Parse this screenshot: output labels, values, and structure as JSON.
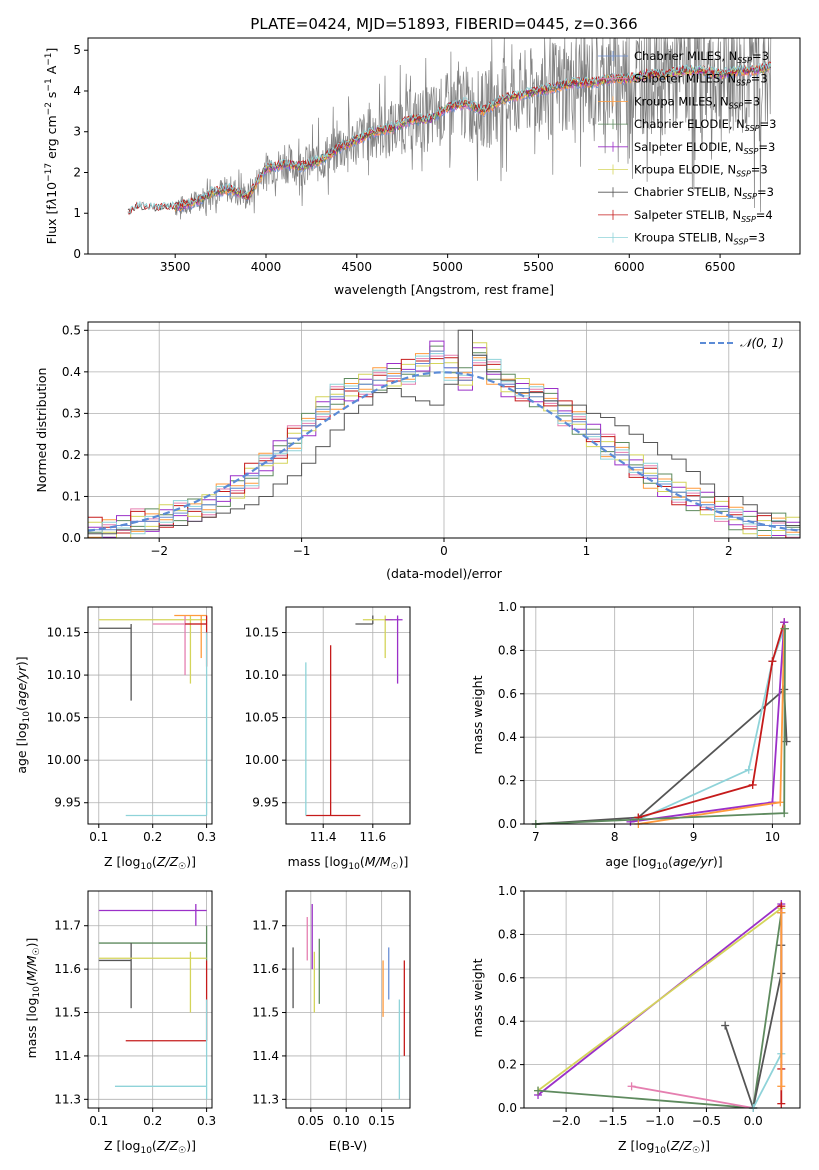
{
  "chart_data": [
    {
      "type": "line",
      "title": "PLATE=0424, MJD=51893, FIBERID=0445, z=0.366",
      "xlabel": "wavelength [Angstrom, rest frame]",
      "ylabel": "Flux [f_λ 10^-17 erg cm^-2 s^-1 A^-1]",
      "xlim": [
        3020,
        6940
      ],
      "ylim": [
        0,
        5.3
      ],
      "xticks": [
        3500,
        4000,
        4500,
        5000,
        5500,
        6000,
        6500
      ],
      "yticks": [
        0,
        1,
        2,
        3,
        4,
        5
      ],
      "grid": false,
      "legend_position": "right",
      "legend": [
        "Chabrier MILES, N_SSP=3",
        "Salpeter MILES, N_SSP=3",
        "Kroupa MILES, N_SSP=3",
        "Chabrier ELODIE, N_SSP=3",
        "Salpeter ELODIE, N_SSP=3",
        "Kroupa ELODIE, N_SSP=3",
        "Chabrier STELIB, N_SSP=3",
        "Salpeter STELIB, N_SSP=4",
        "Kroupa STELIB, N_SSP=3"
      ],
      "data_series": {
        "name": "data",
        "color": "#808080",
        "x": [
          3500,
          3700,
          3900,
          4000,
          4200,
          4400,
          4600,
          4800,
          5000,
          5200,
          5400,
          5600,
          5800,
          6000,
          6200,
          6400,
          6780
        ],
        "y": [
          0.8,
          1.7,
          1.9,
          2.1,
          2.3,
          2.6,
          3.0,
          3.3,
          3.6,
          3.8,
          4.0,
          4.2,
          4.4,
          4.5,
          4.5,
          4.6,
          4.5
        ]
      },
      "model_continuum": {
        "x": [
          3240,
          3300,
          3400,
          3500,
          3600,
          3700,
          3800,
          3900,
          4000,
          4100,
          4200,
          4300,
          4400,
          4500,
          4600,
          4700,
          4800,
          4900,
          5000,
          5100,
          5200,
          5300,
          5400,
          5500,
          5600,
          5700,
          5800,
          5900,
          6000,
          6100,
          6200,
          6300,
          6400,
          6500,
          6600,
          6700,
          6780
        ],
        "y": [
          1.0,
          1.15,
          1.1,
          1.15,
          1.25,
          1.5,
          1.6,
          1.4,
          2.1,
          2.2,
          2.15,
          2.3,
          2.6,
          2.8,
          3.0,
          3.1,
          3.3,
          3.3,
          3.6,
          3.7,
          3.5,
          3.8,
          3.9,
          4.0,
          4.1,
          4.2,
          4.2,
          4.3,
          4.3,
          4.4,
          4.4,
          4.5,
          4.5,
          4.4,
          4.5,
          4.5,
          4.6
        ]
      }
    },
    {
      "type": "line",
      "xlabel": "(data-model)/error",
      "ylabel": "Normed distribution",
      "xlim": [
        -2.5,
        2.5
      ],
      "ylim": [
        0,
        0.52
      ],
      "xticks": [
        -2,
        -1,
        0,
        1,
        2
      ],
      "yticks": [
        0.0,
        0.1,
        0.2,
        0.3,
        0.4,
        0.5
      ],
      "grid": true,
      "legend": [
        "𝒩(0, 1)"
      ],
      "legend_position": "top-right",
      "series": [
        {
          "name": "Chabrier MILES",
          "color": "#6a8fd6",
          "bin_edges": [
            -2.5,
            -2.4,
            -2.3,
            -2.2,
            -2.1,
            -2.0,
            -1.9,
            -1.8,
            -1.7,
            -1.6,
            -1.5,
            -1.4,
            -1.3,
            -1.2,
            -1.1,
            -1.0,
            -0.9,
            -0.8,
            -0.7,
            -0.6,
            -0.5,
            -0.4,
            -0.3,
            -0.2,
            -0.1,
            0.0,
            0.1,
            0.2,
            0.3,
            0.4,
            0.5,
            0.6,
            0.7,
            0.8,
            0.9,
            1.0,
            1.1,
            1.2,
            1.3,
            1.4,
            1.5,
            1.6,
            1.7,
            1.8,
            1.9,
            2.0,
            2.1,
            2.2,
            2.3,
            2.4,
            2.5
          ],
          "values": [
            0.02,
            0.02,
            0.03,
            0.04,
            0.04,
            0.05,
            0.06,
            0.07,
            0.08,
            0.1,
            0.12,
            0.15,
            0.18,
            0.21,
            0.24,
            0.27,
            0.31,
            0.34,
            0.36,
            0.37,
            0.38,
            0.39,
            0.4,
            0.42,
            0.45,
            0.41,
            0.38,
            0.44,
            0.4,
            0.37,
            0.36,
            0.34,
            0.33,
            0.3,
            0.28,
            0.25,
            0.22,
            0.2,
            0.17,
            0.15,
            0.13,
            0.11,
            0.09,
            0.08,
            0.07,
            0.05,
            0.04,
            0.03,
            0.03,
            0.02
          ]
        },
        {
          "name": "Chabrier STELIB",
          "color": "#555555",
          "bin_edges": [
            -2.5,
            -2.4,
            -2.3,
            -2.2,
            -2.1,
            -2.0,
            -1.9,
            -1.8,
            -1.7,
            -1.6,
            -1.5,
            -1.4,
            -1.3,
            -1.2,
            -1.1,
            -1.0,
            -0.9,
            -0.8,
            -0.7,
            -0.6,
            -0.5,
            -0.4,
            -0.3,
            -0.2,
            -0.1,
            0.0,
            0.1,
            0.2,
            0.3,
            0.4,
            0.5,
            0.6,
            0.7,
            0.8,
            0.9,
            1.0,
            1.1,
            1.2,
            1.3,
            1.4,
            1.5,
            1.6,
            1.7,
            1.8,
            1.9,
            2.0,
            2.1,
            2.2,
            2.3,
            2.4,
            2.5
          ],
          "values": [
            0.01,
            0.01,
            0.02,
            0.02,
            0.02,
            0.03,
            0.03,
            0.04,
            0.05,
            0.06,
            0.07,
            0.08,
            0.1,
            0.13,
            0.15,
            0.18,
            0.22,
            0.26,
            0.3,
            0.32,
            0.35,
            0.36,
            0.34,
            0.33,
            0.32,
            0.37,
            0.5,
            0.44,
            0.4,
            0.38,
            0.35,
            0.35,
            0.33,
            0.32,
            0.32,
            0.3,
            0.29,
            0.27,
            0.25,
            0.23,
            0.2,
            0.19,
            0.16,
            0.13,
            0.1,
            0.1,
            0.08,
            0.06,
            0.04,
            0.03
          ]
        },
        {
          "name": "Normal N(0,1)",
          "color": "#5b8bd6",
          "dashed": true,
          "formula": "exp(-x^2/2)/sqrt(2pi)"
        }
      ]
    },
    {
      "type": "scatter",
      "xlabel": "Z [log10(Z/Z☉)]",
      "ylabel": "age  [log10(age/yr)]",
      "xlim": [
        0.08,
        0.31
      ],
      "ylim": [
        9.925,
        10.18
      ],
      "xticks": [
        0.1,
        0.2,
        0.3
      ],
      "yticks": [
        9.95,
        10.0,
        10.05,
        10.1,
        10.15
      ],
      "grid": true,
      "points": [
        {
          "x": 0.16,
          "y": 10.155,
          "xerr": [
            0.1,
            0.16
          ],
          "yerr": [
            10.07,
            10.16
          ],
          "color": "#555555"
        },
        {
          "x": 0.27,
          "y": 10.165,
          "xerr": [
            0.1,
            0.3
          ],
          "yerr": [
            10.09,
            10.17
          ],
          "color": "#d4d45a"
        },
        {
          "x": 0.26,
          "y": 10.16,
          "xerr": [
            0.2,
            0.3
          ],
          "yerr": [
            10.1,
            10.17
          ],
          "color": "#e57fb0"
        },
        {
          "x": 0.29,
          "y": 10.17,
          "xerr": [
            0.24,
            0.3
          ],
          "yerr": [
            10.12,
            10.17
          ],
          "color": "#ff9a3c"
        },
        {
          "x": 0.3,
          "y": 10.16,
          "xerr": [
            0.26,
            0.3
          ],
          "yerr": [
            10.11,
            10.17
          ],
          "color": "#c51b1b"
        },
        {
          "x": 0.3,
          "y": 9.935,
          "xerr": [
            0.15,
            0.3
          ],
          "yerr": [
            9.935,
            10.15
          ],
          "color": "#8fd3d9"
        }
      ]
    },
    {
      "type": "scatter",
      "xlabel": "mass [log10(M/M☉)]",
      "ylabel": "",
      "xlim": [
        11.25,
        11.75
      ],
      "ylim": [
        9.925,
        10.18
      ],
      "xticks": [
        11.4,
        11.6
      ],
      "yticks": [
        9.95,
        10.0,
        10.05,
        10.1,
        10.15
      ],
      "grid": true,
      "points": [
        {
          "x": 11.6,
          "y": 10.16,
          "xerr": [
            11.53,
            11.6
          ],
          "yerr": [
            10.16,
            10.17
          ],
          "color": "#555555"
        },
        {
          "x": 11.65,
          "y": 10.165,
          "xerr": [
            11.56,
            11.68
          ],
          "yerr": [
            10.12,
            10.17
          ],
          "color": "#d4d45a"
        },
        {
          "x": 11.7,
          "y": 10.165,
          "xerr": [
            11.65,
            11.72
          ],
          "yerr": [
            10.09,
            10.17
          ],
          "color": "#9b30c8"
        },
        {
          "x": 11.43,
          "y": 9.935,
          "xerr": [
            11.33,
            11.55
          ],
          "yerr": [
            9.935,
            10.135
          ],
          "color": "#c51b1b"
        },
        {
          "x": 11.33,
          "y": 9.935,
          "xerr": [
            11.33,
            11.33
          ],
          "yerr": [
            9.935,
            10.115
          ],
          "color": "#8fd3d9"
        }
      ]
    },
    {
      "type": "line",
      "xlabel": "age  [log10(age/yr)]",
      "ylabel": "mass weight",
      "xlim": [
        6.85,
        10.35
      ],
      "ylim": [
        0,
        1
      ],
      "xticks": [
        7,
        8,
        9,
        10
      ],
      "yticks": [
        0.0,
        0.2,
        0.4,
        0.6,
        0.8,
        1.0
      ],
      "grid": true,
      "series": [
        {
          "name": "Chabrier STELIB",
          "color": "#555555",
          "x": [
            7.0,
            8.3,
            10.15,
            10.18
          ],
          "y": [
            0.0,
            0.03,
            0.62,
            0.38
          ]
        },
        {
          "name": "Kroupa STELIB",
          "color": "#8fd3d9",
          "x": [
            8.3,
            9.7,
            10.0,
            10.15
          ],
          "y": [
            0.02,
            0.25,
            0.75,
            0.9
          ]
        },
        {
          "name": "Salpeter STELIB",
          "color": "#c51b1b",
          "x": [
            8.3,
            9.75,
            10.0,
            10.15
          ],
          "y": [
            0.03,
            0.18,
            0.75,
            0.93
          ]
        },
        {
          "name": "Salpeter ELODIE",
          "color": "#9b30c8",
          "x": [
            8.2,
            10.0,
            10.15
          ],
          "y": [
            0.01,
            0.1,
            0.93
          ]
        },
        {
          "name": "Kroupa MILES",
          "color": "#ff9a3c",
          "x": [
            8.3,
            10.1,
            10.15
          ],
          "y": [
            0.0,
            0.1,
            0.9
          ]
        },
        {
          "name": "Chabrier ELODIE",
          "color": "#5e8a5e",
          "x": [
            7.0,
            10.15,
            10.16
          ],
          "y": [
            0.0,
            0.05,
            0.9
          ]
        }
      ]
    },
    {
      "type": "scatter",
      "xlabel": "Z [log10(Z/Z☉)]",
      "ylabel": "mass [log10(M/M☉)]",
      "xlim": [
        0.08,
        0.31
      ],
      "ylim": [
        11.28,
        11.78
      ],
      "xticks": [
        0.1,
        0.2,
        0.3
      ],
      "yticks": [
        11.3,
        11.4,
        11.5,
        11.6,
        11.7
      ],
      "grid": true,
      "points": [
        {
          "x": 0.28,
          "y": 11.735,
          "xerr": [
            0.1,
            0.3
          ],
          "yerr": [
            11.7,
            11.75
          ],
          "color": "#9b30c8"
        },
        {
          "x": 0.3,
          "y": 11.66,
          "xerr": [
            0.1,
            0.3
          ],
          "yerr": [
            11.62,
            11.7
          ],
          "color": "#5e8a5e"
        },
        {
          "x": 0.16,
          "y": 11.62,
          "xerr": [
            0.1,
            0.16
          ],
          "yerr": [
            11.51,
            11.66
          ],
          "color": "#555555"
        },
        {
          "x": 0.27,
          "y": 11.625,
          "xerr": [
            0.1,
            0.3
          ],
          "yerr": [
            11.5,
            11.64
          ],
          "color": "#d4d45a"
        },
        {
          "x": 0.3,
          "y": 11.435,
          "xerr": [
            0.15,
            0.3
          ],
          "yerr": [
            11.435,
            11.62
          ],
          "color": "#c51b1b"
        },
        {
          "x": 0.3,
          "y": 11.33,
          "xerr": [
            0.13,
            0.3
          ],
          "yerr": [
            11.3,
            11.53
          ],
          "color": "#8fd3d9"
        }
      ]
    },
    {
      "type": "scatter",
      "xlabel": "E(B-V)",
      "ylabel": "",
      "xlim": [
        0.015,
        0.19
      ],
      "ylim": [
        11.28,
        11.78
      ],
      "xticks": [
        0.05,
        0.1,
        0.15
      ],
      "yticks": [
        11.3,
        11.4,
        11.5,
        11.6,
        11.7
      ],
      "grid": true,
      "points": [
        {
          "x": 0.025,
          "y": 11.6,
          "yerr": [
            11.51,
            11.65
          ],
          "color": "#555555"
        },
        {
          "x": 0.045,
          "y": 11.68,
          "yerr": [
            11.62,
            11.72
          ],
          "color": "#e57fb0"
        },
        {
          "x": 0.052,
          "y": 11.68,
          "yerr": [
            11.6,
            11.75
          ],
          "color": "#9b30c8"
        },
        {
          "x": 0.055,
          "y": 11.6,
          "yerr": [
            11.5,
            11.64
          ],
          "color": "#d4d45a"
        },
        {
          "x": 0.062,
          "y": 11.62,
          "yerr": [
            11.52,
            11.67
          ],
          "color": "#5e8a5e"
        },
        {
          "x": 0.152,
          "y": 11.56,
          "yerr": [
            11.49,
            11.62
          ],
          "color": "#ff9a3c"
        },
        {
          "x": 0.16,
          "y": 11.6,
          "yerr": [
            11.53,
            11.65
          ],
          "color": "#6a8fd6"
        },
        {
          "x": 0.175,
          "y": 11.4,
          "yerr": [
            11.3,
            11.53
          ],
          "color": "#8fd3d9"
        },
        {
          "x": 0.182,
          "y": 11.5,
          "yerr": [
            11.4,
            11.62
          ],
          "color": "#c51b1b"
        }
      ]
    },
    {
      "type": "line",
      "xlabel": "Z [log10(Z/Z☉)]",
      "ylabel": "mass weight",
      "xlim": [
        -2.45,
        0.5
      ],
      "ylim": [
        0,
        1
      ],
      "xticks": [
        -2.0,
        -1.5,
        -1.0,
        -0.5,
        0.0
      ],
      "yticks": [
        0.0,
        0.2,
        0.4,
        0.6,
        0.8,
        1.0
      ],
      "grid": true,
      "series": [
        {
          "name": "Salpeter ELODIE",
          "color": "#9b30c8",
          "x": [
            -2.3,
            0.3,
            0.3
          ],
          "y": [
            0.06,
            0.94,
            0.9
          ]
        },
        {
          "name": "Kroupa ELODIE",
          "color": "#d4d45a",
          "x": [
            -2.3,
            0.3
          ],
          "y": [
            0.08,
            0.92
          ]
        },
        {
          "name": "Chabrier ELODIE",
          "color": "#5e8a5e",
          "x": [
            -2.3,
            0.0,
            0.3
          ],
          "y": [
            0.08,
            0.0,
            0.9
          ]
        },
        {
          "name": "Salpeter MILES",
          "color": "#e57fb0",
          "x": [
            -1.3,
            0.0
          ],
          "y": [
            0.1,
            0.0
          ]
        },
        {
          "name": "Chabrier STELIB",
          "color": "#555555",
          "x": [
            -0.3,
            0.0,
            0.3,
            0.3
          ],
          "y": [
            0.38,
            0.0,
            0.62,
            0.75
          ]
        },
        {
          "name": "Kroupa STELIB",
          "color": "#8fd3d9",
          "x": [
            0.0,
            0.3,
            0.3
          ],
          "y": [
            0.0,
            0.25,
            0.9
          ]
        },
        {
          "name": "Salpeter STELIB",
          "color": "#c51b1b",
          "x": [
            0.3,
            0.3,
            0.3
          ],
          "y": [
            0.02,
            0.18,
            0.93
          ]
        },
        {
          "name": "Kroupa MILES",
          "color": "#ff9a3c",
          "x": [
            0.3,
            0.3
          ],
          "y": [
            0.1,
            0.9
          ]
        }
      ]
    }
  ],
  "colors": {
    "Chabrier MILES": "#6a8fd6",
    "Salpeter MILES": "#e57fb0",
    "Kroupa MILES": "#ff9a3c",
    "Chabrier ELODIE": "#5e8a5e",
    "Salpeter ELODIE": "#9b30c8",
    "Kroupa ELODIE": "#d4d45a",
    "Chabrier STELIB": "#555555",
    "Salpeter STELIB": "#c51b1b",
    "Kroupa STELIB": "#8fd3d9",
    "data": "#808080",
    "normal": "#5b8bd6"
  }
}
